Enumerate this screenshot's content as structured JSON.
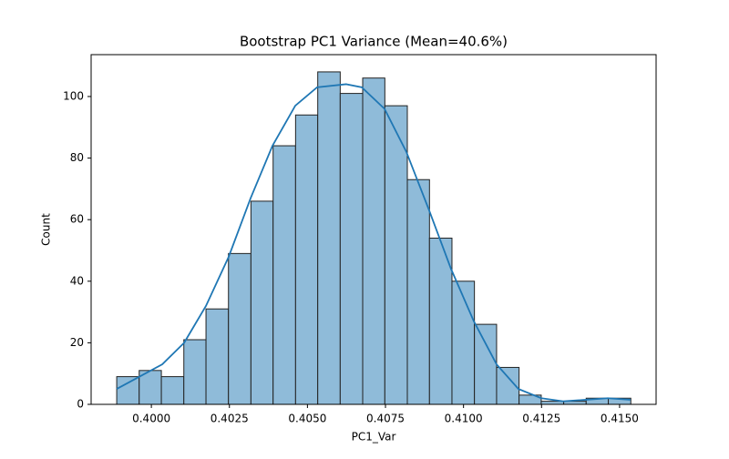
{
  "chart_data": {
    "type": "histogram",
    "title": "Bootstrap PC1 Variance (Mean=40.6%)",
    "x_label": "PC1_Var",
    "y_label": "Count",
    "bins": [
      0.39889,
      0.39961,
      0.40032,
      0.40104,
      0.40175,
      0.40247,
      0.40319,
      0.4039,
      0.40462,
      0.40533,
      0.40605,
      0.40677,
      0.40748,
      0.4082,
      0.40891,
      0.40963,
      0.41035,
      0.41106,
      0.41178,
      0.41249,
      0.41321,
      0.41393,
      0.41464,
      0.41536
    ],
    "counts": [
      9,
      11,
      9,
      21,
      31,
      49,
      66,
      84,
      94,
      108,
      101,
      106,
      97,
      73,
      54,
      40,
      26,
      12,
      3,
      1,
      1,
      2,
      2
    ],
    "color": "#8fbbd9",
    "edge_color": "#222222",
    "kde": {
      "color": "#1f77b4",
      "x": [
        0.39889,
        0.39962,
        0.40035,
        0.40105,
        0.40175,
        0.40248,
        0.40318,
        0.40388,
        0.40461,
        0.40531,
        0.40624,
        0.40674,
        0.40747,
        0.40817,
        0.4089,
        0.4096,
        0.41033,
        0.41106,
        0.41176,
        0.41249,
        0.41319,
        0.41392,
        0.41462,
        0.41535
      ],
      "y": [
        5,
        9,
        13,
        20,
        32,
        48,
        67,
        84,
        97,
        103,
        104,
        103,
        96,
        82,
        63,
        44,
        27,
        13,
        5,
        2,
        1,
        1.5,
        2,
        1.5
      ]
    },
    "xlim": [
      0.39807,
      0.41617
    ],
    "ylim": [
      0,
      113.6
    ],
    "xticks": [
      {
        "value": 0.4,
        "label": "0.4000"
      },
      {
        "value": 0.4025,
        "label": "0.4025"
      },
      {
        "value": 0.405,
        "label": "0.4050"
      },
      {
        "value": 0.4075,
        "label": "0.4075"
      },
      {
        "value": 0.41,
        "label": "0.4100"
      },
      {
        "value": 0.4125,
        "label": "0.4125"
      },
      {
        "value": 0.415,
        "label": "0.4150"
      }
    ],
    "yticks": [
      0,
      20,
      40,
      60,
      80,
      100
    ]
  }
}
